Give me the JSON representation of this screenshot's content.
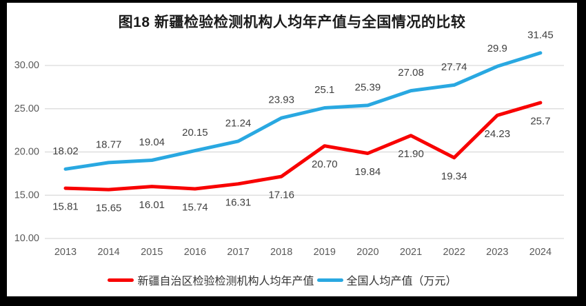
{
  "title": "图18  新疆检验检测机构人均年产值与全国情况的比较",
  "colors": {
    "frame": "#000000",
    "background": "#ffffff",
    "grid": "#d9d9d9",
    "axis_text": "#595959",
    "label_text": "#404040",
    "title_text": "#1a1a1a",
    "xinjiang_red": "#f80000",
    "national_blue": "#29a8e1"
  },
  "chart_data": {
    "type": "line",
    "title": "图18  新疆检验检测机构人均年产值与全国情况的比较",
    "categories": [
      "2013",
      "2014",
      "2015",
      "2016",
      "2017",
      "2018",
      "2019",
      "2020",
      "2021",
      "2022",
      "2023",
      "2024"
    ],
    "series": [
      {
        "name": "新疆自治区检验检测机构人均年产值",
        "color": "#f80000",
        "values": [
          15.81,
          15.65,
          16.01,
          15.74,
          16.31,
          17.16,
          20.7,
          19.84,
          21.9,
          19.34,
          24.23,
          25.7
        ],
        "labels": [
          "15.81",
          "15.65",
          "16.01",
          "15.74",
          "16.31",
          "17.16",
          "20.70",
          "19.84",
          "21.90",
          "19.34",
          "24.23",
          "25.7"
        ],
        "label_position": "below"
      },
      {
        "name": "全国人均产值（万元）",
        "color": "#29a8e1",
        "values": [
          18.02,
          18.77,
          19.04,
          20.15,
          21.24,
          23.93,
          25.1,
          25.39,
          27.08,
          27.74,
          29.9,
          31.45
        ],
        "labels": [
          "18.02",
          "18.77",
          "19.04",
          "20.15",
          "21.24",
          "23.93",
          "25.1",
          "25.39",
          "27.08",
          "27.74",
          "29.9",
          "31.45"
        ],
        "label_position": "above"
      }
    ],
    "yticks": [
      10,
      15,
      20,
      25,
      30
    ],
    "ytick_labels": [
      "10.00",
      "15.00",
      "20.00",
      "25.00",
      "30.00"
    ],
    "ylim": [
      10,
      32.6
    ],
    "grid": true,
    "legend_position": "bottom"
  }
}
